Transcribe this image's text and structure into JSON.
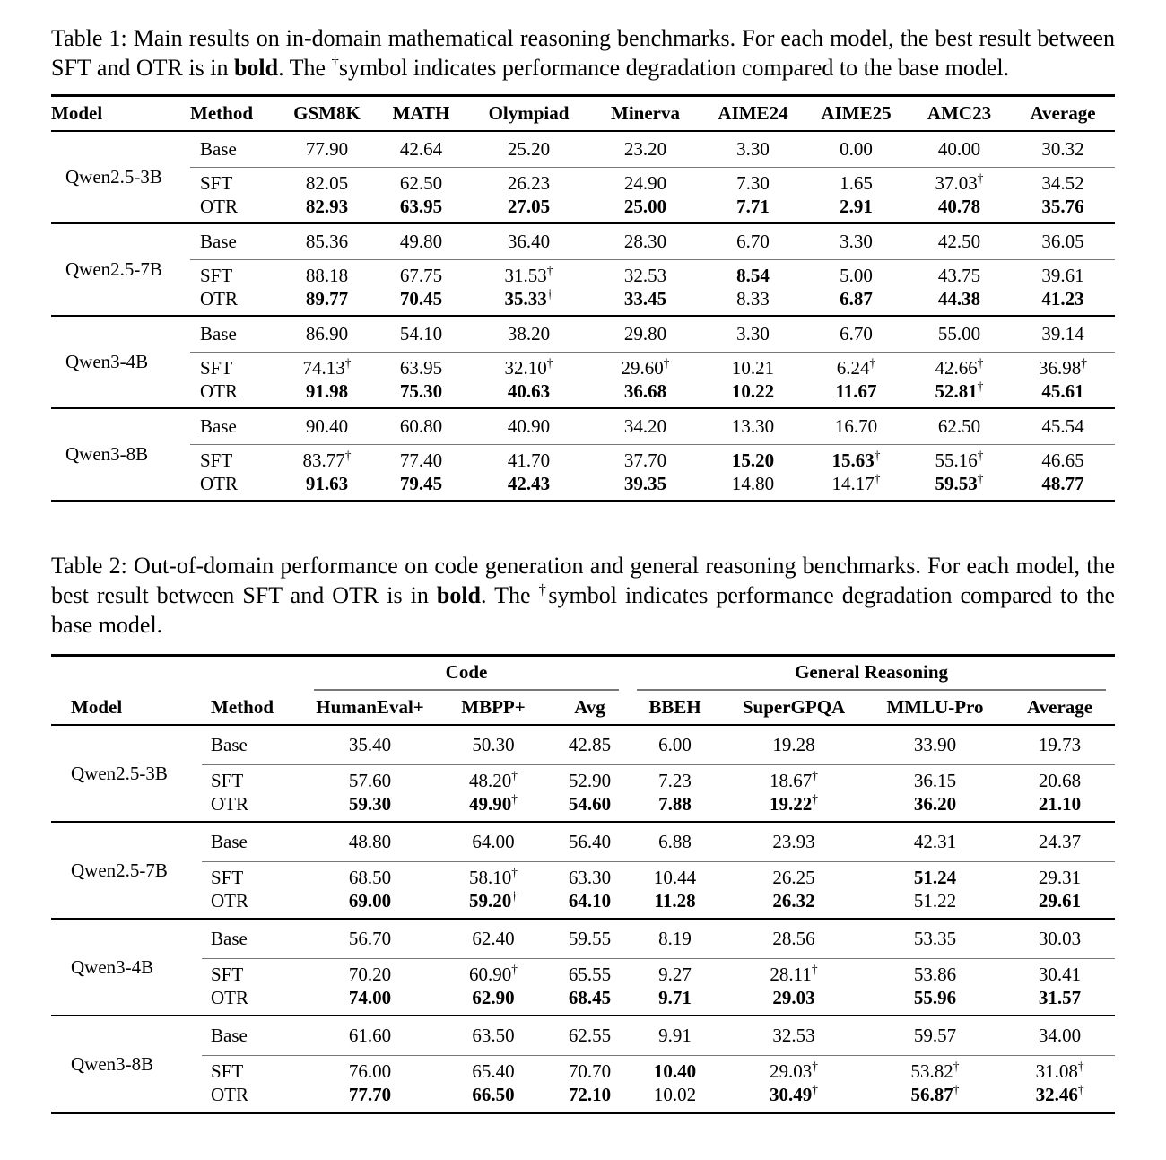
{
  "colors": {
    "background": "#ffffff",
    "text": "#000000",
    "rule-heavy": "#000000",
    "rule-light": "#777777"
  },
  "dagger": "†",
  "table1": {
    "caption_parts": [
      {
        "t": "Table 1: Main results on in-domain mathematical reasoning benchmarks. For each model, the best result between SFT and OTR is in "
      },
      {
        "t": "bold",
        "b": true
      },
      {
        "t": ". The "
      },
      {
        "t": "†",
        "sup": true
      },
      {
        "t": "symbol indicates performance degradation compared to the base model."
      }
    ],
    "columns": [
      "Model",
      "Method",
      "GSM8K",
      "MATH",
      "Olympiad",
      "Minerva",
      "AIME24",
      "AIME25",
      "AMC23",
      "Average"
    ],
    "groups": [
      {
        "model": "Qwen2.5-3B",
        "rows": [
          {
            "method": "Base",
            "cells": [
              {
                "v": "77.90"
              },
              {
                "v": "42.64"
              },
              {
                "v": "25.20"
              },
              {
                "v": "23.20"
              },
              {
                "v": "3.30"
              },
              {
                "v": "0.00"
              },
              {
                "v": "40.00"
              },
              {
                "v": "30.32"
              }
            ]
          },
          {
            "method": "SFT",
            "cells": [
              {
                "v": "82.05"
              },
              {
                "v": "62.50"
              },
              {
                "v": "26.23"
              },
              {
                "v": "24.90"
              },
              {
                "v": "7.30"
              },
              {
                "v": "1.65"
              },
              {
                "v": "37.03",
                "d": true
              },
              {
                "v": "34.52"
              }
            ]
          },
          {
            "method": "OTR",
            "cells": [
              {
                "v": "82.93",
                "b": true
              },
              {
                "v": "63.95",
                "b": true
              },
              {
                "v": "27.05",
                "b": true
              },
              {
                "v": "25.00",
                "b": true
              },
              {
                "v": "7.71",
                "b": true
              },
              {
                "v": "2.91",
                "b": true
              },
              {
                "v": "40.78",
                "b": true
              },
              {
                "v": "35.76",
                "b": true
              }
            ]
          }
        ]
      },
      {
        "model": "Qwen2.5-7B",
        "rows": [
          {
            "method": "Base",
            "cells": [
              {
                "v": "85.36"
              },
              {
                "v": "49.80"
              },
              {
                "v": "36.40"
              },
              {
                "v": "28.30"
              },
              {
                "v": "6.70"
              },
              {
                "v": "3.30"
              },
              {
                "v": "42.50"
              },
              {
                "v": "36.05"
              }
            ]
          },
          {
            "method": "SFT",
            "cells": [
              {
                "v": "88.18"
              },
              {
                "v": "67.75"
              },
              {
                "v": "31.53",
                "d": true
              },
              {
                "v": "32.53"
              },
              {
                "v": "8.54",
                "b": true
              },
              {
                "v": "5.00"
              },
              {
                "v": "43.75"
              },
              {
                "v": "39.61"
              }
            ]
          },
          {
            "method": "OTR",
            "cells": [
              {
                "v": "89.77",
                "b": true
              },
              {
                "v": "70.45",
                "b": true
              },
              {
                "v": "35.33",
                "b": true,
                "d": true
              },
              {
                "v": "33.45",
                "b": true
              },
              {
                "v": "8.33"
              },
              {
                "v": "6.87",
                "b": true
              },
              {
                "v": "44.38",
                "b": true
              },
              {
                "v": "41.23",
                "b": true
              }
            ]
          }
        ]
      },
      {
        "model": "Qwen3-4B",
        "rows": [
          {
            "method": "Base",
            "cells": [
              {
                "v": "86.90"
              },
              {
                "v": "54.10"
              },
              {
                "v": "38.20"
              },
              {
                "v": "29.80"
              },
              {
                "v": "3.30"
              },
              {
                "v": "6.70"
              },
              {
                "v": "55.00"
              },
              {
                "v": "39.14"
              }
            ]
          },
          {
            "method": "SFT",
            "cells": [
              {
                "v": "74.13",
                "d": true
              },
              {
                "v": "63.95"
              },
              {
                "v": "32.10",
                "d": true
              },
              {
                "v": "29.60",
                "d": true
              },
              {
                "v": "10.21"
              },
              {
                "v": "6.24",
                "d": true
              },
              {
                "v": "42.66",
                "d": true
              },
              {
                "v": "36.98",
                "d": true
              }
            ]
          },
          {
            "method": "OTR",
            "cells": [
              {
                "v": "91.98",
                "b": true
              },
              {
                "v": "75.30",
                "b": true
              },
              {
                "v": "40.63",
                "b": true
              },
              {
                "v": "36.68",
                "b": true
              },
              {
                "v": "10.22",
                "b": true
              },
              {
                "v": "11.67",
                "b": true
              },
              {
                "v": "52.81",
                "b": true,
                "d": true
              },
              {
                "v": "45.61",
                "b": true
              }
            ]
          }
        ]
      },
      {
        "model": "Qwen3-8B",
        "rows": [
          {
            "method": "Base",
            "cells": [
              {
                "v": "90.40"
              },
              {
                "v": "60.80"
              },
              {
                "v": "40.90"
              },
              {
                "v": "34.20"
              },
              {
                "v": "13.30"
              },
              {
                "v": "16.70"
              },
              {
                "v": "62.50"
              },
              {
                "v": "45.54"
              }
            ]
          },
          {
            "method": "SFT",
            "cells": [
              {
                "v": "83.77",
                "d": true
              },
              {
                "v": "77.40"
              },
              {
                "v": "41.70"
              },
              {
                "v": "37.70"
              },
              {
                "v": "15.20",
                "b": true
              },
              {
                "v": "15.63",
                "b": true,
                "d": true
              },
              {
                "v": "55.16",
                "d": true
              },
              {
                "v": "46.65"
              }
            ]
          },
          {
            "method": "OTR",
            "cells": [
              {
                "v": "91.63",
                "b": true
              },
              {
                "v": "79.45",
                "b": true
              },
              {
                "v": "42.43",
                "b": true
              },
              {
                "v": "39.35",
                "b": true
              },
              {
                "v": "14.80"
              },
              {
                "v": "14.17",
                "d": true
              },
              {
                "v": "59.53",
                "b": true,
                "d": true
              },
              {
                "v": "48.77",
                "b": true
              }
            ]
          }
        ]
      }
    ]
  },
  "table2": {
    "caption_parts": [
      {
        "t": "Table 2: Out-of-domain performance on code generation and general reasoning benchmarks. For each model, the best result between SFT and OTR is in "
      },
      {
        "t": "bold",
        "b": true
      },
      {
        "t": ". The "
      },
      {
        "t": "†",
        "sup": true
      },
      {
        "t": "symbol indicates performance degradation compared to the base model."
      }
    ],
    "group_headers": [
      "Code",
      "General Reasoning"
    ],
    "columns": [
      "Model",
      "Method",
      "HumanEval+",
      "MBPP+",
      "Avg",
      "BBEH",
      "SuperGPQA",
      "MMLU-Pro",
      "Average"
    ],
    "groups": [
      {
        "model": "Qwen2.5-3B",
        "rows": [
          {
            "method": "Base",
            "cells": [
              {
                "v": "35.40"
              },
              {
                "v": "50.30"
              },
              {
                "v": "42.85"
              },
              {
                "v": "6.00"
              },
              {
                "v": "19.28"
              },
              {
                "v": "33.90"
              },
              {
                "v": "19.73"
              }
            ]
          },
          {
            "method": "SFT",
            "cells": [
              {
                "v": "57.60"
              },
              {
                "v": "48.20",
                "d": true
              },
              {
                "v": "52.90"
              },
              {
                "v": "7.23"
              },
              {
                "v": "18.67",
                "d": true
              },
              {
                "v": "36.15"
              },
              {
                "v": "20.68"
              }
            ]
          },
          {
            "method": "OTR",
            "cells": [
              {
                "v": "59.30",
                "b": true
              },
              {
                "v": "49.90",
                "b": true,
                "d": true
              },
              {
                "v": "54.60",
                "b": true
              },
              {
                "v": "7.88",
                "b": true
              },
              {
                "v": "19.22",
                "b": true,
                "d": true
              },
              {
                "v": "36.20",
                "b": true
              },
              {
                "v": "21.10",
                "b": true
              }
            ]
          }
        ]
      },
      {
        "model": "Qwen2.5-7B",
        "rows": [
          {
            "method": "Base",
            "cells": [
              {
                "v": "48.80"
              },
              {
                "v": "64.00"
              },
              {
                "v": "56.40"
              },
              {
                "v": "6.88"
              },
              {
                "v": "23.93"
              },
              {
                "v": "42.31"
              },
              {
                "v": "24.37"
              }
            ]
          },
          {
            "method": "SFT",
            "cells": [
              {
                "v": "68.50"
              },
              {
                "v": "58.10",
                "d": true
              },
              {
                "v": "63.30"
              },
              {
                "v": "10.44"
              },
              {
                "v": "26.25"
              },
              {
                "v": "51.24",
                "b": true
              },
              {
                "v": "29.31"
              }
            ]
          },
          {
            "method": "OTR",
            "cells": [
              {
                "v": "69.00",
                "b": true
              },
              {
                "v": "59.20",
                "b": true,
                "d": true
              },
              {
                "v": "64.10",
                "b": true
              },
              {
                "v": "11.28",
                "b": true
              },
              {
                "v": "26.32",
                "b": true
              },
              {
                "v": "51.22"
              },
              {
                "v": "29.61",
                "b": true
              }
            ]
          }
        ]
      },
      {
        "model": "Qwen3-4B",
        "rows": [
          {
            "method": "Base",
            "cells": [
              {
                "v": "56.70"
              },
              {
                "v": "62.40"
              },
              {
                "v": "59.55"
              },
              {
                "v": "8.19"
              },
              {
                "v": "28.56"
              },
              {
                "v": "53.35"
              },
              {
                "v": "30.03"
              }
            ]
          },
          {
            "method": "SFT",
            "cells": [
              {
                "v": "70.20"
              },
              {
                "v": "60.90",
                "d": true
              },
              {
                "v": "65.55"
              },
              {
                "v": "9.27"
              },
              {
                "v": "28.11",
                "d": true
              },
              {
                "v": "53.86"
              },
              {
                "v": "30.41"
              }
            ]
          },
          {
            "method": "OTR",
            "cells": [
              {
                "v": "74.00",
                "b": true
              },
              {
                "v": "62.90",
                "b": true
              },
              {
                "v": "68.45",
                "b": true
              },
              {
                "v": "9.71",
                "b": true
              },
              {
                "v": "29.03",
                "b": true
              },
              {
                "v": "55.96",
                "b": true
              },
              {
                "v": "31.57",
                "b": true
              }
            ]
          }
        ]
      },
      {
        "model": "Qwen3-8B",
        "rows": [
          {
            "method": "Base",
            "cells": [
              {
                "v": "61.60"
              },
              {
                "v": "63.50"
              },
              {
                "v": "62.55"
              },
              {
                "v": "9.91"
              },
              {
                "v": "32.53"
              },
              {
                "v": "59.57"
              },
              {
                "v": "34.00"
              }
            ]
          },
          {
            "method": "SFT",
            "cells": [
              {
                "v": "76.00"
              },
              {
                "v": "65.40"
              },
              {
                "v": "70.70"
              },
              {
                "v": "10.40",
                "b": true
              },
              {
                "v": "29.03",
                "d": true
              },
              {
                "v": "53.82",
                "d": true
              },
              {
                "v": "31.08",
                "d": true
              }
            ]
          },
          {
            "method": "OTR",
            "cells": [
              {
                "v": "77.70",
                "b": true
              },
              {
                "v": "66.50",
                "b": true
              },
              {
                "v": "72.10",
                "b": true
              },
              {
                "v": "10.02"
              },
              {
                "v": "30.49",
                "b": true,
                "d": true
              },
              {
                "v": "56.87",
                "b": true,
                "d": true
              },
              {
                "v": "32.46",
                "b": true,
                "d": true
              }
            ]
          }
        ]
      }
    ]
  }
}
